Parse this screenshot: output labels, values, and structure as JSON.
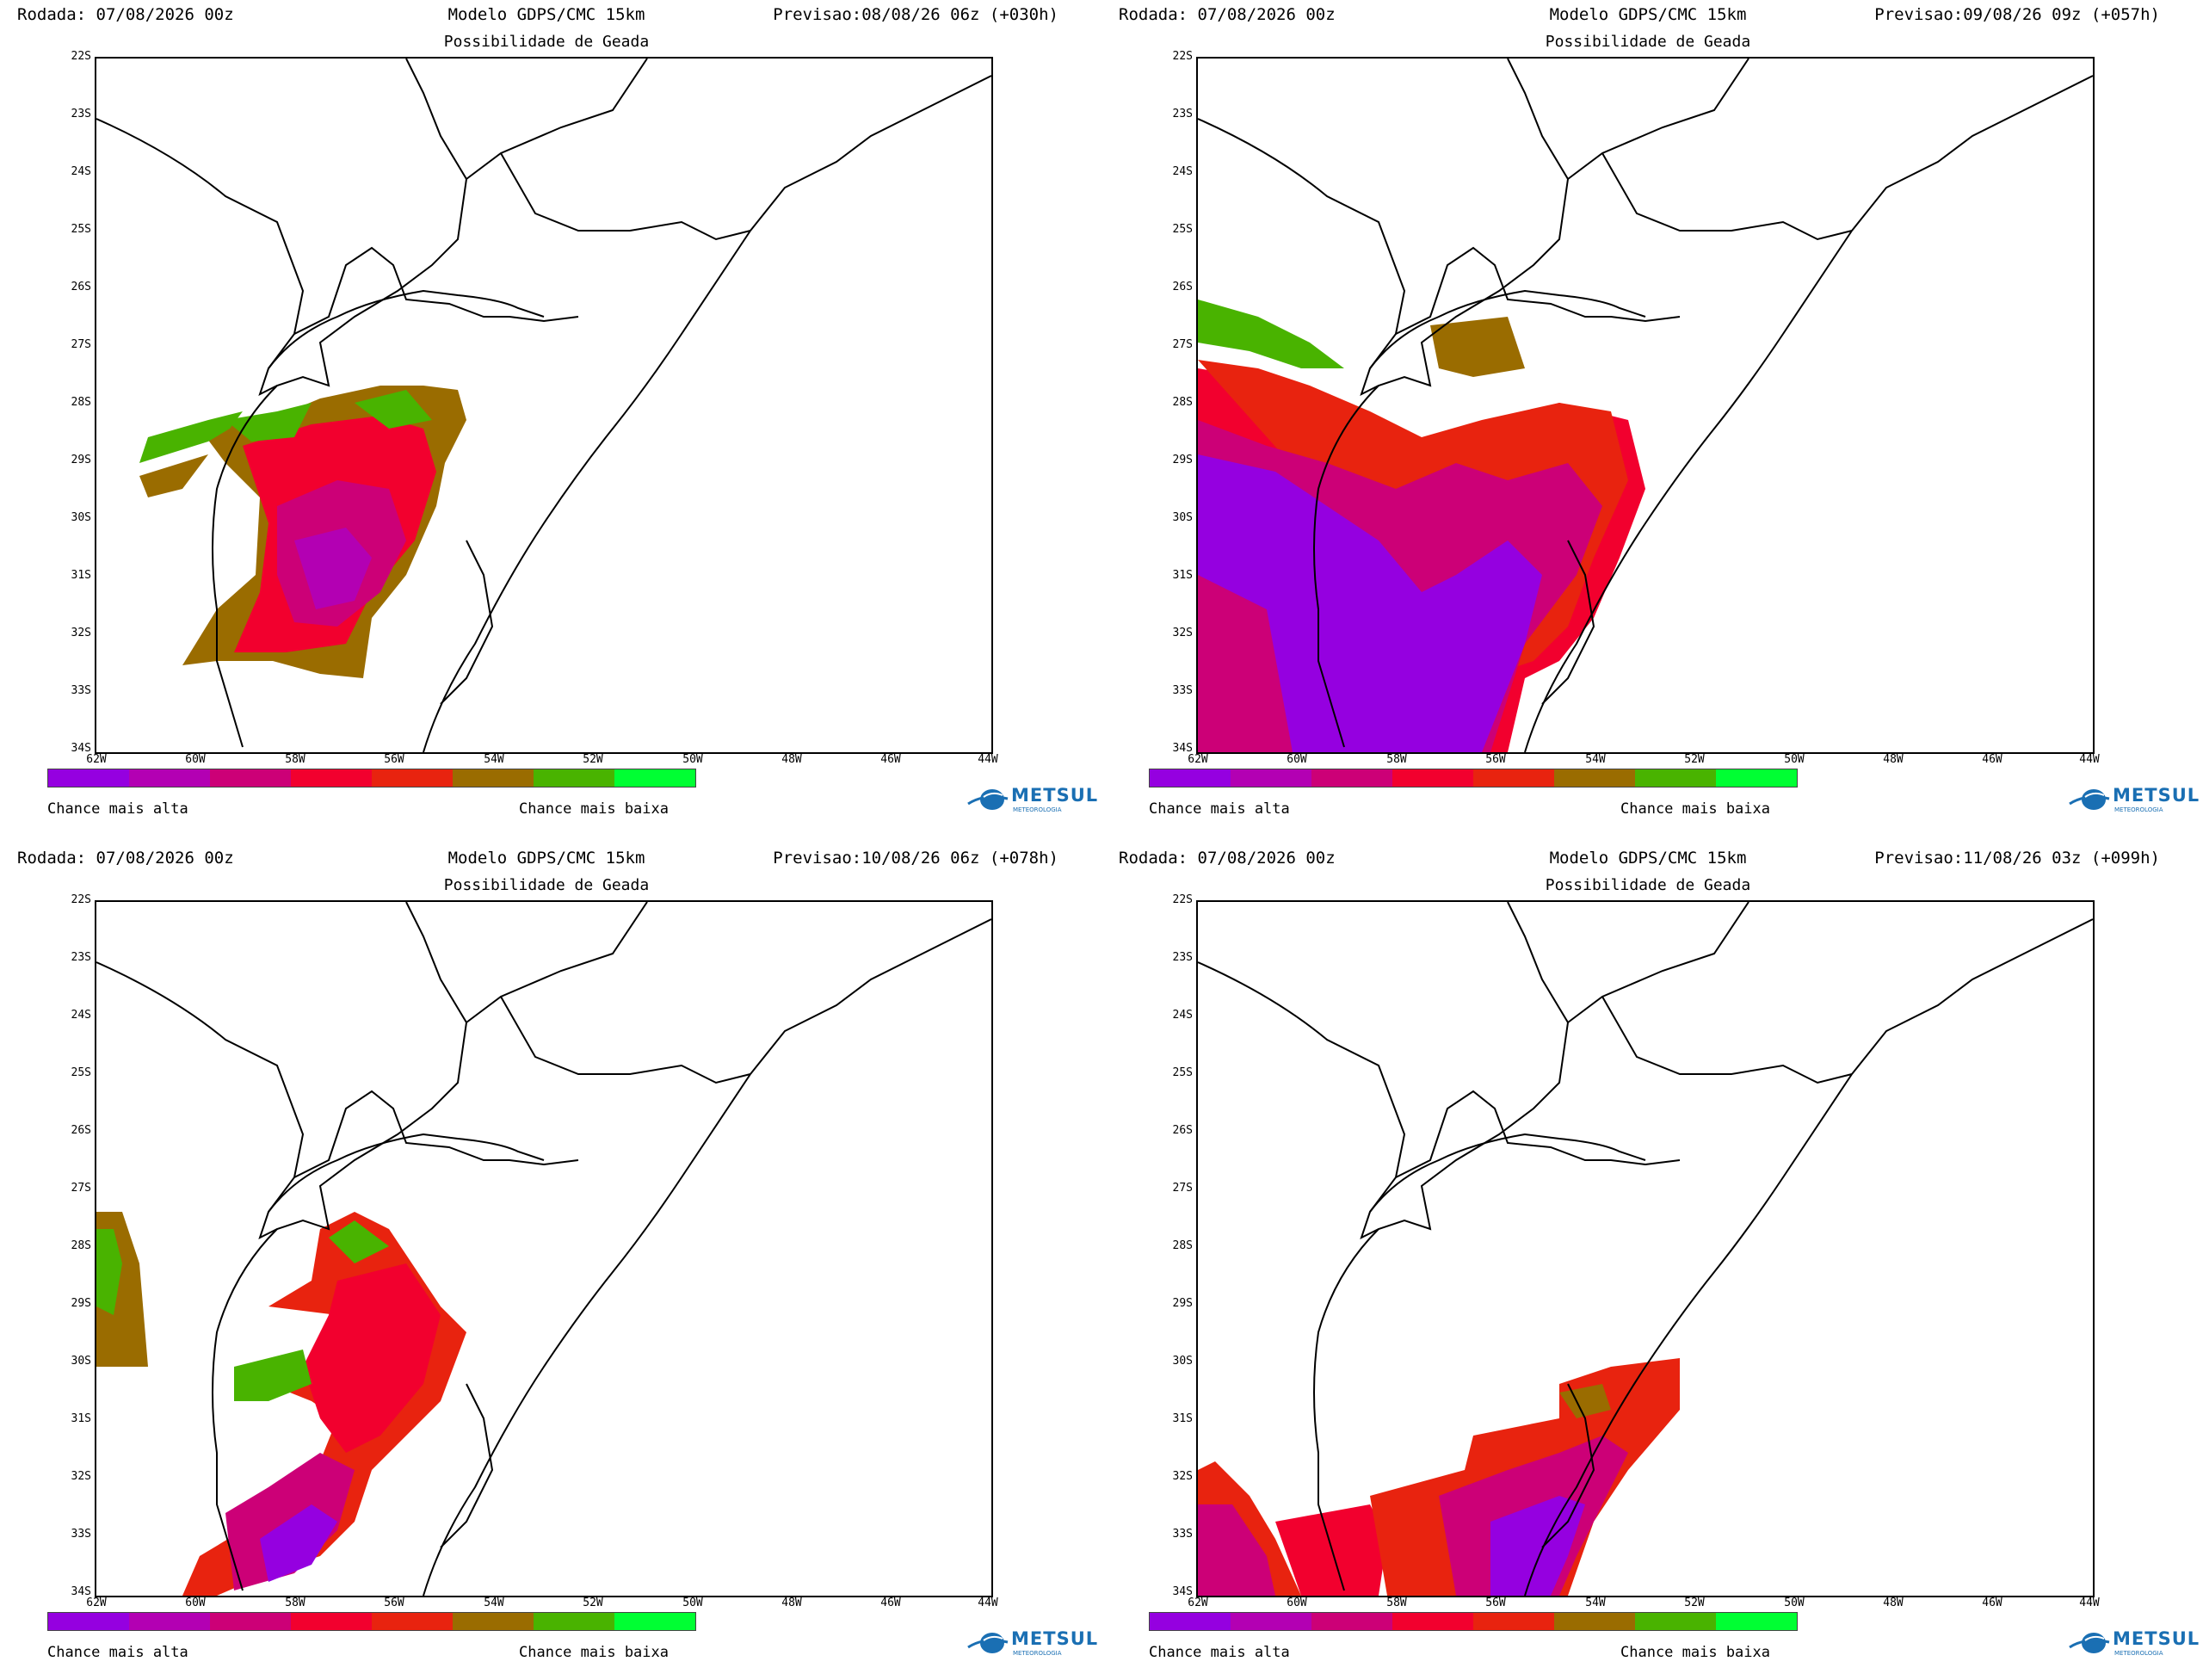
{
  "panels": [
    {
      "rodada": "Rodada: 07/08/2026 00z",
      "modelo": "Modelo GDPS/CMC 15km",
      "previsao": "Previsao:08/08/26 06z (+030h)",
      "subtitle": "Possibilidade de Geada"
    },
    {
      "rodada": "Rodada: 07/08/2026 00z",
      "modelo": "Modelo GDPS/CMC 15km",
      "previsao": "Previsao:09/08/26 09z (+057h)",
      "subtitle": "Possibilidade de Geada"
    },
    {
      "rodada": "Rodada: 07/08/2026 00z",
      "modelo": "Modelo GDPS/CMC 15km",
      "previsao": "Previsao:10/08/26 06z (+078h)",
      "subtitle": "Possibilidade de Geada"
    },
    {
      "rodada": "Rodada: 07/08/2026 00z",
      "modelo": "Modelo GDPS/CMC 15km",
      "previsao": "Previsao:11/08/26 03z (+099h)",
      "subtitle": "Possibilidade de Geada"
    }
  ],
  "lat_labels": [
    "22S",
    "23S",
    "24S",
    "25S",
    "26S",
    "27S",
    "28S",
    "29S",
    "30S",
    "31S",
    "32S",
    "33S",
    "34S"
  ],
  "lon_labels": [
    "62W",
    "60W",
    "58W",
    "56W",
    "54W",
    "52W",
    "50W",
    "48W",
    "46W",
    "44W"
  ],
  "legend": {
    "high_label": "Chance mais alta",
    "low_label": "Chance mais baixa",
    "colors": [
      "#9500e0",
      "#b300b3",
      "#cc0077",
      "#f2002e",
      "#e8230f",
      "#9a6c00",
      "#49b300",
      "#00ff33"
    ]
  },
  "logo": {
    "name": "METSUL",
    "tagline": "METEOROLOGIA"
  }
}
